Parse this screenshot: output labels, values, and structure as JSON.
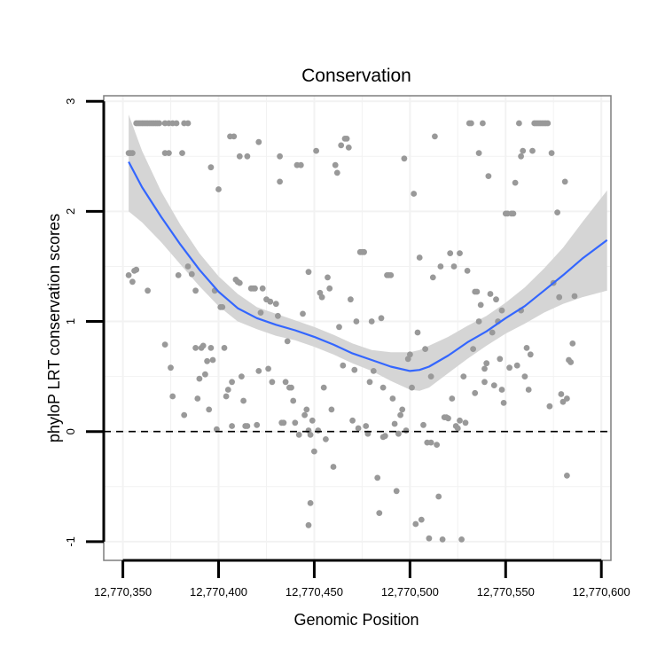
{
  "chart_data": {
    "type": "scatter",
    "title": "Conservation",
    "xlabel": "Genomic Position",
    "ylabel": "phyloP LRT conservation scores",
    "xlim": [
      12770340,
      12770605
    ],
    "ylim": [
      -1.17,
      3.05
    ],
    "x_ticks": [
      12770350,
      12770400,
      12770450,
      12770500,
      12770550,
      12770600
    ],
    "x_tick_labels": [
      "12,770,350",
      "12,770,400",
      "12,770,450",
      "12,770,500",
      "12,770,550",
      "12,770,600"
    ],
    "y_ticks": [
      -1,
      0,
      1,
      2,
      3
    ],
    "y_tick_labels": [
      "-1",
      "0",
      "1",
      "2",
      "3"
    ],
    "reference_line": {
      "y": 0,
      "style": "dashed"
    },
    "grid": true,
    "colors": {
      "points": "#999999",
      "smooth": "#3366ff",
      "ribbon": "#d3d3d3",
      "panel_border": "#7f7f7f",
      "grid": "#f2f2f2",
      "axis": "#000000"
    },
    "points": [
      [
        12770353,
        2.53
      ],
      [
        12770354,
        2.53
      ],
      [
        12770355,
        2.53
      ],
      [
        12770353,
        1.42
      ],
      [
        12770355,
        1.36
      ],
      [
        12770356,
        1.46
      ],
      [
        12770357,
        1.47
      ],
      [
        12770357,
        2.8
      ],
      [
        12770358,
        2.8
      ],
      [
        12770359,
        2.8
      ],
      [
        12770360,
        2.8
      ],
      [
        12770361,
        2.8
      ],
      [
        12770362,
        2.8
      ],
      [
        12770363,
        2.8
      ],
      [
        12770364,
        2.8
      ],
      [
        12770365,
        2.8
      ],
      [
        12770366,
        2.8
      ],
      [
        12770367,
        2.8
      ],
      [
        12770368,
        2.8
      ],
      [
        12770369,
        2.8
      ],
      [
        12770372,
        2.8
      ],
      [
        12770374,
        2.8
      ],
      [
        12770376,
        2.8
      ],
      [
        12770378,
        2.8
      ],
      [
        12770382,
        2.8
      ],
      [
        12770384,
        2.8
      ],
      [
        12770363,
        1.28
      ],
      [
        12770372,
        2.53
      ],
      [
        12770374,
        2.53
      ],
      [
        12770372,
        0.79
      ],
      [
        12770375,
        0.58
      ],
      [
        12770376,
        0.32
      ],
      [
        12770379,
        1.42
      ],
      [
        12770381,
        2.53
      ],
      [
        12770382,
        0.15
      ],
      [
        12770384,
        1.5
      ],
      [
        12770386,
        1.43
      ],
      [
        12770388,
        1.28
      ],
      [
        12770388,
        0.76
      ],
      [
        12770389,
        0.3
      ],
      [
        12770390,
        0.48
      ],
      [
        12770391,
        0.76
      ],
      [
        12770392,
        0.78
      ],
      [
        12770393,
        0.52
      ],
      [
        12770394,
        0.64
      ],
      [
        12770395,
        0.2
      ],
      [
        12770396,
        0.76
      ],
      [
        12770396,
        2.4
      ],
      [
        12770397,
        0.65
      ],
      [
        12770398,
        1.28
      ],
      [
        12770399,
        0.02
      ],
      [
        12770400,
        2.2
      ],
      [
        12770401,
        1.13
      ],
      [
        12770402,
        1.13
      ],
      [
        12770403,
        0.76
      ],
      [
        12770404,
        0.32
      ],
      [
        12770405,
        0.38
      ],
      [
        12770406,
        2.68
      ],
      [
        12770407,
        0.05
      ],
      [
        12770407,
        0.45
      ],
      [
        12770408,
        2.68
      ],
      [
        12770409,
        1.38
      ],
      [
        12770410,
        1.36
      ],
      [
        12770411,
        1.35
      ],
      [
        12770411,
        2.5
      ],
      [
        12770412,
        0.5
      ],
      [
        12770413,
        0.28
      ],
      [
        12770414,
        0.05
      ],
      [
        12770415,
        0.05
      ],
      [
        12770415,
        2.5
      ],
      [
        12770417,
        1.3
      ],
      [
        12770418,
        1.3
      ],
      [
        12770419,
        1.3
      ],
      [
        12770420,
        0.06
      ],
      [
        12770421,
        0.55
      ],
      [
        12770421,
        2.63
      ],
      [
        12770422,
        1.08
      ],
      [
        12770423,
        1.3
      ],
      [
        12770425,
        1.2
      ],
      [
        12770426,
        0.57
      ],
      [
        12770427,
        1.18
      ],
      [
        12770428,
        0.45
      ],
      [
        12770430,
        1.16
      ],
      [
        12770431,
        1.05
      ],
      [
        12770432,
        2.5
      ],
      [
        12770432,
        2.27
      ],
      [
        12770433,
        0.08
      ],
      [
        12770434,
        0.08
      ],
      [
        12770435,
        0.45
      ],
      [
        12770436,
        0.82
      ],
      [
        12770437,
        0.4
      ],
      [
        12770438,
        0.4
      ],
      [
        12770439,
        0.28
      ],
      [
        12770440,
        0.08
      ],
      [
        12770441,
        2.42
      ],
      [
        12770442,
        -0.03
      ],
      [
        12770443,
        2.42
      ],
      [
        12770444,
        1.07
      ],
      [
        12770445,
        0.15
      ],
      [
        12770446,
        0.2
      ],
      [
        12770447,
        1.45
      ],
      [
        12770447,
        0.01
      ],
      [
        12770448,
        -0.03
      ],
      [
        12770448,
        -0.65
      ],
      [
        12770447,
        -0.85
      ],
      [
        12770449,
        0.1
      ],
      [
        12770450,
        -0.18
      ],
      [
        12770451,
        2.55
      ],
      [
        12770452,
        0.01
      ],
      [
        12770453,
        1.26
      ],
      [
        12770454,
        1.22
      ],
      [
        12770455,
        0.4
      ],
      [
        12770456,
        -0.07
      ],
      [
        12770457,
        1.4
      ],
      [
        12770458,
        1.3
      ],
      [
        12770459,
        0.2
      ],
      [
        12770460,
        -0.32
      ],
      [
        12770461,
        2.42
      ],
      [
        12770462,
        2.35
      ],
      [
        12770463,
        0.95
      ],
      [
        12770464,
        2.6
      ],
      [
        12770465,
        0.6
      ],
      [
        12770466,
        2.66
      ],
      [
        12770467,
        2.66
      ],
      [
        12770468,
        2.58
      ],
      [
        12770469,
        1.2
      ],
      [
        12770470,
        0.1
      ],
      [
        12770471,
        0.56
      ],
      [
        12770472,
        1.0
      ],
      [
        12770473,
        0.03
      ],
      [
        12770474,
        1.63
      ],
      [
        12770475,
        1.63
      ],
      [
        12770476,
        1.63
      ],
      [
        12770477,
        0.05
      ],
      [
        12770478,
        -0.02
      ],
      [
        12770479,
        0.45
      ],
      [
        12770480,
        1.0
      ],
      [
        12770481,
        0.55
      ],
      [
        12770483,
        -0.42
      ],
      [
        12770484,
        -0.74
      ],
      [
        12770485,
        1.03
      ],
      [
        12770486,
        0.4
      ],
      [
        12770486,
        -0.05
      ],
      [
        12770487,
        -0.04
      ],
      [
        12770488,
        1.42
      ],
      [
        12770489,
        1.42
      ],
      [
        12770490,
        1.42
      ],
      [
        12770491,
        0.3
      ],
      [
        12770492,
        0.07
      ],
      [
        12770493,
        -0.54
      ],
      [
        12770494,
        -0.02
      ],
      [
        12770495,
        0.15
      ],
      [
        12770496,
        0.2
      ],
      [
        12770497,
        2.48
      ],
      [
        12770498,
        0.01
      ],
      [
        12770499,
        0.66
      ],
      [
        12770500,
        0.7
      ],
      [
        12770501,
        0.4
      ],
      [
        12770502,
        2.16
      ],
      [
        12770503,
        -0.84
      ],
      [
        12770504,
        0.9
      ],
      [
        12770505,
        1.58
      ],
      [
        12770506,
        -0.8
      ],
      [
        12770507,
        0.06
      ],
      [
        12770508,
        0.75
      ],
      [
        12770509,
        -0.1
      ],
      [
        12770510,
        -0.97
      ],
      [
        12770511,
        0.5
      ],
      [
        12770511,
        -0.1
      ],
      [
        12770512,
        1.4
      ],
      [
        12770513,
        2.68
      ],
      [
        12770514,
        -0.12
      ],
      [
        12770515,
        -0.59
      ],
      [
        12770516,
        1.5
      ],
      [
        12770517,
        -0.98
      ],
      [
        12770518,
        0.13
      ],
      [
        12770519,
        0.13
      ],
      [
        12770520,
        0.12
      ],
      [
        12770521,
        1.62
      ],
      [
        12770522,
        0.3
      ],
      [
        12770523,
        1.5
      ],
      [
        12770524,
        0.05
      ],
      [
        12770525,
        0.03
      ],
      [
        12770526,
        1.62
      ],
      [
        12770526,
        0.1
      ],
      [
        12770527,
        -0.98
      ],
      [
        12770528,
        0.5
      ],
      [
        12770529,
        0.08
      ],
      [
        12770530,
        1.46
      ],
      [
        12770531,
        2.8
      ],
      [
        12770532,
        2.8
      ],
      [
        12770533,
        0.75
      ],
      [
        12770534,
        1.27
      ],
      [
        12770534,
        0.35
      ],
      [
        12770535,
        1.27
      ],
      [
        12770536,
        2.53
      ],
      [
        12770536,
        1.0
      ],
      [
        12770537,
        1.15
      ],
      [
        12770538,
        2.8
      ],
      [
        12770539,
        0.45
      ],
      [
        12770539,
        0.57
      ],
      [
        12770540,
        0.62
      ],
      [
        12770541,
        2.32
      ],
      [
        12770542,
        1.25
      ],
      [
        12770543,
        0.9
      ],
      [
        12770544,
        0.42
      ],
      [
        12770545,
        1.2
      ],
      [
        12770546,
        1.0
      ],
      [
        12770547,
        0.66
      ],
      [
        12770548,
        1.1
      ],
      [
        12770548,
        0.38
      ],
      [
        12770549,
        0.26
      ],
      [
        12770550,
        1.98
      ],
      [
        12770551,
        1.98
      ],
      [
        12770552,
        0.58
      ],
      [
        12770553,
        1.98
      ],
      [
        12770554,
        1.98
      ],
      [
        12770555,
        2.26
      ],
      [
        12770556,
        0.6
      ],
      [
        12770557,
        2.8
      ],
      [
        12770558,
        2.5
      ],
      [
        12770558,
        1.1
      ],
      [
        12770559,
        2.55
      ],
      [
        12770560,
        0.5
      ],
      [
        12770561,
        0.76
      ],
      [
        12770562,
        0.38
      ],
      [
        12770563,
        0.7
      ],
      [
        12770564,
        2.55
      ],
      [
        12770565,
        2.8
      ],
      [
        12770566,
        2.8
      ],
      [
        12770567,
        2.8
      ],
      [
        12770568,
        2.8
      ],
      [
        12770569,
        2.8
      ],
      [
        12770570,
        2.8
      ],
      [
        12770571,
        2.8
      ],
      [
        12770572,
        2.8
      ],
      [
        12770573,
        0.23
      ],
      [
        12770574,
        2.53
      ],
      [
        12770575,
        1.35
      ],
      [
        12770577,
        1.99
      ],
      [
        12770578,
        1.22
      ],
      [
        12770579,
        0.34
      ],
      [
        12770580,
        0.27
      ],
      [
        12770581,
        2.27
      ],
      [
        12770582,
        0.3
      ],
      [
        12770582,
        -0.4
      ],
      [
        12770583,
        0.65
      ],
      [
        12770584,
        0.63
      ],
      [
        12770585,
        0.8
      ],
      [
        12770586,
        1.23
      ]
    ],
    "smooth_x": [
      12770353,
      12770360,
      12770370,
      12770380,
      12770390,
      12770400,
      12770410,
      12770420,
      12770430,
      12770440,
      12770450,
      12770460,
      12770470,
      12770480,
      12770490,
      12770500,
      12770505,
      12770510,
      12770520,
      12770530,
      12770540,
      12770550,
      12770560,
      12770570,
      12770580,
      12770590,
      12770603
    ],
    "smooth_y": [
      2.45,
      2.22,
      1.95,
      1.7,
      1.47,
      1.27,
      1.12,
      1.03,
      0.97,
      0.92,
      0.86,
      0.79,
      0.71,
      0.65,
      0.59,
      0.55,
      0.56,
      0.59,
      0.69,
      0.81,
      0.91,
      1.03,
      1.14,
      1.28,
      1.42,
      1.57,
      1.74
    ],
    "se_lower": [
      2.0,
      1.9,
      1.72,
      1.52,
      1.32,
      1.14,
      1.0,
      0.93,
      0.87,
      0.83,
      0.77,
      0.7,
      0.62,
      0.55,
      0.46,
      0.38,
      0.37,
      0.4,
      0.53,
      0.66,
      0.78,
      0.89,
      0.98,
      1.08,
      1.16,
      1.22,
      1.28
    ],
    "se_upper": [
      2.88,
      2.55,
      2.18,
      1.88,
      1.62,
      1.41,
      1.25,
      1.13,
      1.07,
      1.01,
      0.95,
      0.88,
      0.8,
      0.74,
      0.72,
      0.72,
      0.74,
      0.78,
      0.86,
      0.96,
      1.05,
      1.17,
      1.31,
      1.48,
      1.67,
      1.9,
      2.19
    ]
  }
}
